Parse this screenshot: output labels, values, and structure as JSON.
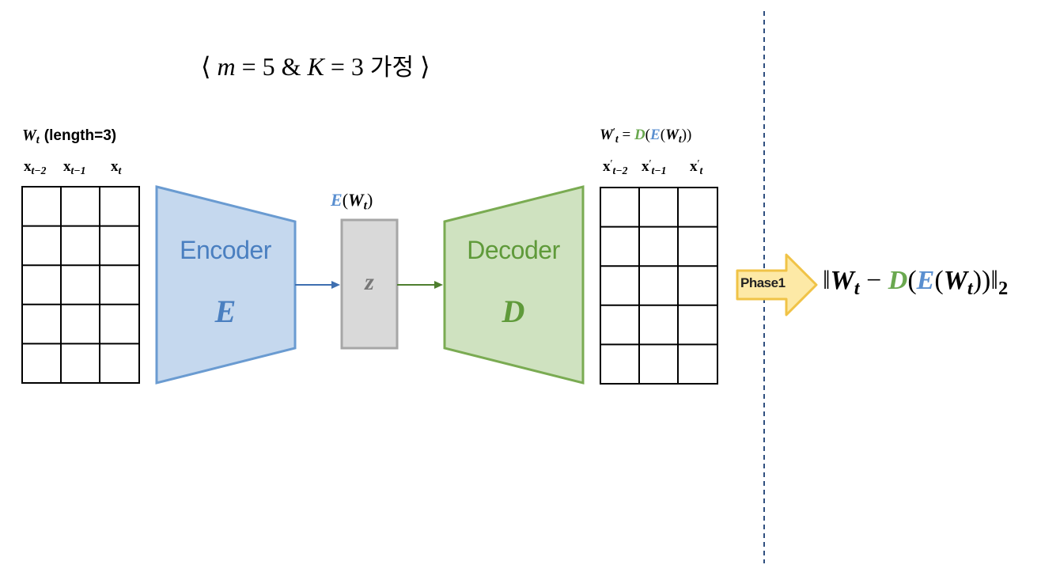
{
  "title": {
    "open_bracket": "⟨",
    "m_symbol": "m",
    "eq1": "=",
    "m_value": "5",
    "amp": "&",
    "k_symbol": "K",
    "eq2": "=",
    "k_value": "3",
    "assume_word": "가정",
    "close_bracket": "⟩"
  },
  "window": {
    "symbol": "W",
    "sub": "t",
    "desc": "(length=3)",
    "columns": [
      {
        "base": "x",
        "sub": "t−2"
      },
      {
        "base": "x",
        "sub": "t−1"
      },
      {
        "base": "x",
        "sub": "t"
      }
    ],
    "rows": 5,
    "cols": 3
  },
  "encoder": {
    "label": "Encoder",
    "symbol": "E",
    "color": "#c5d8ee",
    "stroke": "#6a9bd1",
    "text_color": "#4a7fc0"
  },
  "latent": {
    "label_fn": "E",
    "label_arg": "W",
    "label_sub": "t",
    "symbol": "z",
    "color": "#d9d9d9",
    "stroke": "#a6a6a6"
  },
  "decoder": {
    "label": "Decoder",
    "symbol": "D",
    "color": "#cfe2c0",
    "stroke": "#7aab52",
    "text_color": "#5f9a3a"
  },
  "reconstruction": {
    "symbol": "W",
    "prime": "′",
    "sub": "t",
    "eq": "=",
    "dec_fn": "D",
    "enc_fn": "E",
    "arg": "W",
    "arg_sub": "t",
    "columns": [
      {
        "base": "x",
        "prime": "′",
        "sub": "t−2"
      },
      {
        "base": "x",
        "prime": "′",
        "sub": "t−1"
      },
      {
        "base": "x",
        "prime": "′",
        "sub": "t"
      }
    ]
  },
  "phase": {
    "label": "Phase1",
    "fill": "#fde9a6",
    "stroke": "#f0c347"
  },
  "loss": {
    "norm_open": "‖",
    "w": "W",
    "w_sub": "t",
    "minus": "−",
    "d": "D",
    "e": "E",
    "w2": "W",
    "w2_sub": "t",
    "norm_close": "‖",
    "norm_sub": "2"
  },
  "divider": {
    "color": "#2f4f7f"
  }
}
